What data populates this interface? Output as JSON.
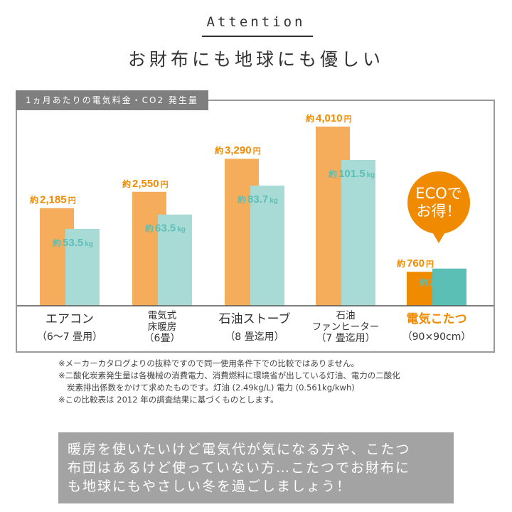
{
  "header": {
    "heading": "Attention",
    "subheading": "お財布にも地球にも優しい"
  },
  "chart_data": {
    "type": "bar",
    "title": "1ヵ月あたりの電気料金・CO2 発生量",
    "categories": [
      {
        "lines": [
          "エアコン",
          "（6〜7 畳用）"
        ],
        "highlight": false
      },
      {
        "lines": [
          "電気式",
          "床暖房",
          "（6畳）"
        ],
        "highlight": false
      },
      {
        "lines": [
          "石油ストーブ",
          "（8 畳迄用）"
        ],
        "highlight": false
      },
      {
        "lines": [
          "石油",
          "ファンヒーター",
          "（7 畳迄用）"
        ],
        "highlight": false
      },
      {
        "lines": [
          "電気こたつ",
          "（90×90cm）"
        ],
        "highlight": true
      }
    ],
    "series": [
      {
        "values": [
          2185,
          2550,
          3290,
          4010,
          760
        ],
        "labels": [
          "2,185",
          "2,550",
          "3,290",
          "4,010",
          "760"
        ],
        "prefix": "約",
        "unit": "円",
        "color": "#f5ad5c",
        "highlight_color": "#f08a00",
        "label_color": "#f08a00"
      },
      {
        "values": [
          53.5,
          63.5,
          83.7,
          101.5,
          25.9
        ],
        "labels": [
          "53.5",
          "63.5",
          "83.7",
          "101.5",
          "25.9"
        ],
        "prefix": "約",
        "unit": "kg",
        "color": "#a9dbd6",
        "highlight_color": "#5bbfb5",
        "label_color": "#5bbfb5"
      }
    ],
    "callout": {
      "lines": [
        "ECOで",
        "お得！"
      ],
      "color": "#f08a00"
    }
  },
  "notes": [
    "※メーカーカタログよりの抜粋ですので同一使用条件下での比較ではありません。",
    "※二酸化炭素発生量は各機械の消費電力、消費燃料に環境省が出している灯油、電力の二酸化",
    "炭素排出係数をかけて求めたものです。灯油 (2.49kg/L) 電力 (0.561kg/kwh)",
    "※この比較表は 2012 年の調査結果に基づくものとします。"
  ],
  "message": [
    "暖房を使いたいけど電気代が気になる方や、こたつ",
    "布団はあるけど使っていない方…こたつでお財布に",
    "も地球にもやさしい冬を過ごしましょう！"
  ]
}
